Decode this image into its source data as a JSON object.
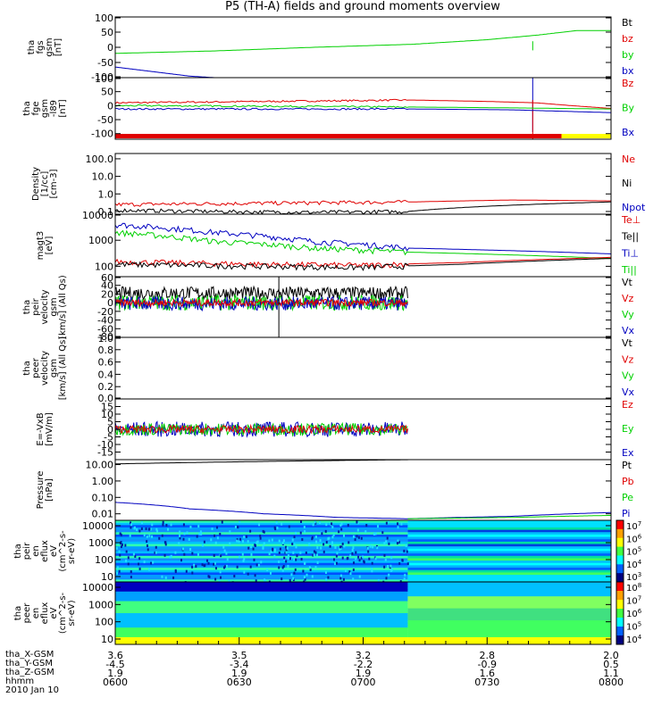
{
  "title": "P5 (TH-A) fields and ground moments overview",
  "colors": {
    "black": "#000000",
    "red": "#e00000",
    "green": "#00d000",
    "blue": "#0000c0",
    "yellow": "#ffff00",
    "orange": "#ffa000"
  },
  "chart_data": [
    {
      "type": "line",
      "panel": "fgs",
      "ylabel": [
        "tha",
        "fgs",
        "gsm",
        "[nT]"
      ],
      "ylim": [
        -100,
        100
      ],
      "yticks": [
        "100",
        "50",
        "0",
        "-50",
        "-100"
      ],
      "legend": [
        "Bt",
        "bz",
        "by",
        "bx"
      ],
      "series": [
        {
          "name": "by",
          "color": "green",
          "x": [
            0,
            0.2,
            0.4,
            0.6,
            0.75,
            0.85,
            0.93,
            1.0
          ],
          "y": [
            -20,
            -12,
            0,
            10,
            25,
            40,
            55,
            55
          ]
        },
        {
          "name": "bx",
          "color": "blue",
          "x": [
            0,
            0.05,
            0.1,
            0.15,
            0.2
          ],
          "y": [
            -65,
            -75,
            -85,
            -95,
            -100
          ]
        }
      ]
    },
    {
      "type": "line",
      "panel": "fge",
      "ylabel": [
        "tha",
        "fge",
        "gsm",
        "-l89",
        "[nT]"
      ],
      "ylim": [
        -120,
        100
      ],
      "yticks": [
        "100",
        "50",
        "0",
        "-50",
        "-100"
      ],
      "legend": [
        "Bz",
        "By",
        "Bx"
      ],
      "series": [
        {
          "name": "Bz",
          "color": "red",
          "x": [
            0,
            0.3,
            0.6,
            0.75,
            0.85,
            0.92,
            1.0
          ],
          "y": [
            10,
            15,
            20,
            15,
            10,
            0,
            -10
          ]
        },
        {
          "name": "By",
          "color": "green",
          "x": [
            0,
            0.3,
            0.6,
            0.8,
            0.9,
            1.0
          ],
          "y": [
            0,
            -2,
            -5,
            -8,
            -10,
            -12
          ]
        },
        {
          "name": "Bx",
          "color": "blue",
          "x": [
            0,
            0.3,
            0.6,
            0.8,
            0.9,
            1.0
          ],
          "y": [
            -12,
            -12,
            -12,
            -15,
            -20,
            -25
          ]
        }
      ]
    },
    {
      "type": "line",
      "panel": "density",
      "ylabel": [
        "Density",
        "[1/cc]",
        "[cm-3]"
      ],
      "ylim": [
        0.07,
        200
      ],
      "yscale": "log",
      "yticks": [
        "100.0",
        "10.0",
        "1.0",
        "0.1"
      ],
      "legend": [
        "Ne",
        "Ni",
        "Npot"
      ],
      "series": [
        {
          "name": "Ne",
          "color": "red",
          "x": [
            0,
            0.3,
            0.6,
            0.8,
            1.0
          ],
          "y": [
            0.25,
            0.3,
            0.35,
            0.45,
            0.4
          ]
        },
        {
          "name": "Ni",
          "color": "black",
          "x": [
            0,
            0.2,
            0.4,
            0.59,
            1.0
          ],
          "y": [
            0.12,
            0.1,
            0.09,
            0.1,
            0.35
          ]
        }
      ]
    },
    {
      "type": "line",
      "panel": "magt3",
      "ylabel": [
        "magt3",
        "[eV]"
      ],
      "ylim": [
        40,
        10000
      ],
      "yscale": "log",
      "yticks": [
        "10000",
        "1000",
        "100"
      ],
      "legend": [
        "Te⊥",
        "Te||",
        "Ti⊥",
        "Ti||"
      ],
      "series": [
        {
          "name": "Ti⊥",
          "color": "blue",
          "x": [
            0,
            0.2,
            0.4,
            0.59,
            1.0
          ],
          "y": [
            4000,
            2000,
            900,
            500,
            300
          ]
        },
        {
          "name": "Ti||",
          "color": "green",
          "x": [
            0,
            0.2,
            0.4,
            0.59,
            1.0
          ],
          "y": [
            2000,
            900,
            500,
            350,
            200
          ]
        },
        {
          "name": "Te⊥",
          "color": "red",
          "x": [
            0,
            0.3,
            0.5,
            0.7,
            1.0
          ],
          "y": [
            150,
            120,
            110,
            140,
            220
          ]
        },
        {
          "name": "Te||",
          "color": "black",
          "x": [
            0,
            0.3,
            0.5,
            0.7,
            1.0
          ],
          "y": [
            120,
            100,
            90,
            120,
            200
          ]
        }
      ]
    },
    {
      "type": "line",
      "panel": "peir-velocity",
      "ylabel": [
        "tha",
        "peir",
        "velocity",
        "gsm",
        "[km/s] (All Qs)"
      ],
      "ylim": [
        -80,
        60
      ],
      "yticks": [
        "60",
        "40",
        "20",
        "0",
        "-20",
        "-40",
        "-60",
        "-80"
      ],
      "legend": [
        "Vt",
        "Vz",
        "Vy",
        "Vx"
      ],
      "series": []
    },
    {
      "type": "line",
      "panel": "peer-velocity",
      "ylabel": [
        "tha",
        "peer",
        "velocity",
        "gsm",
        "[km/s] (All Qs)"
      ],
      "ylim": [
        0,
        1
      ],
      "yticks": [
        "1.0",
        "0.8",
        "0.6",
        "0.4",
        "0.2",
        "0.0"
      ],
      "legend": [
        "Vt",
        "Vz",
        "Vy",
        "Vx"
      ],
      "series": []
    },
    {
      "type": "line",
      "panel": "efield",
      "ylabel": [
        "E=-VxB",
        "[mV/m]"
      ],
      "ylim": [
        -20,
        20
      ],
      "yticks": [
        "15",
        "10",
        "5",
        "0",
        "-5",
        "-10",
        "-15"
      ],
      "legend": [
        "Ez",
        "Ey",
        "Ex"
      ],
      "series": []
    },
    {
      "type": "line",
      "panel": "pressure",
      "ylabel": [
        "Pressure",
        "[nPa]"
      ],
      "ylim": [
        0.004,
        20
      ],
      "yscale": "log",
      "yticks": [
        "10.00",
        "1.00",
        "0.10",
        "0.01"
      ],
      "legend": [
        "Pt",
        "Pb",
        "Pe",
        "Pi"
      ],
      "series": [
        {
          "name": "Pt",
          "color": "black",
          "x": [
            0,
            0.2,
            0.4,
            0.6,
            0.8,
            1.0
          ],
          "y": [
            11,
            14,
            17,
            20,
            20,
            20
          ]
        },
        {
          "name": "Pi",
          "color": "blue",
          "x": [
            0,
            0.15,
            0.3,
            0.45,
            0.59,
            0.8,
            1.0
          ],
          "y": [
            0.05,
            0.02,
            0.01,
            0.006,
            0.005,
            0.007,
            0.012
          ]
        },
        {
          "name": "Pe",
          "color": "green",
          "x": [
            0.59,
            0.8,
            1.0
          ],
          "y": [
            0.005,
            0.006,
            0.008
          ]
        }
      ]
    },
    {
      "type": "heatmap",
      "panel": "peir-en-eflux",
      "ylabel": [
        "tha",
        "peir",
        "en",
        "eflux",
        "eV",
        "(cm^2-s-",
        "sr-eV)"
      ],
      "yscale": "log",
      "yticks": [
        "10000",
        "1000",
        "100",
        "10"
      ],
      "colorbar_ticks": [
        "10^7",
        "10^6",
        "10^5",
        "10^4",
        "10^3"
      ]
    },
    {
      "type": "heatmap",
      "panel": "peer-en-eflux",
      "ylabel": [
        "tha",
        "peer",
        "en",
        "eflux",
        "eV",
        "(cm^2-s-",
        "sr-eV)"
      ],
      "yscale": "log",
      "yticks": [
        "10000",
        "1000",
        "100",
        "10"
      ],
      "colorbar_ticks": [
        "10^8",
        "10^7",
        "10^6",
        "10^5",
        "10^4"
      ]
    }
  ],
  "footer": {
    "row_labels": [
      "tha_X-GSM",
      "tha_Y-GSM",
      "tha_Z-GSM",
      "hhmm",
      "2010 Jan 10"
    ],
    "columns": [
      [
        "3.6",
        "-4.5",
        "1.9",
        "0600"
      ],
      [
        "3.5",
        "-3.4",
        "1.9",
        "0630"
      ],
      [
        "3.2",
        "-2.2",
        "1.9",
        "0700"
      ],
      [
        "2.8",
        "-0.9",
        "1.6",
        "0730"
      ],
      [
        "2.0",
        "0.5",
        "1.1",
        "0800"
      ]
    ]
  }
}
